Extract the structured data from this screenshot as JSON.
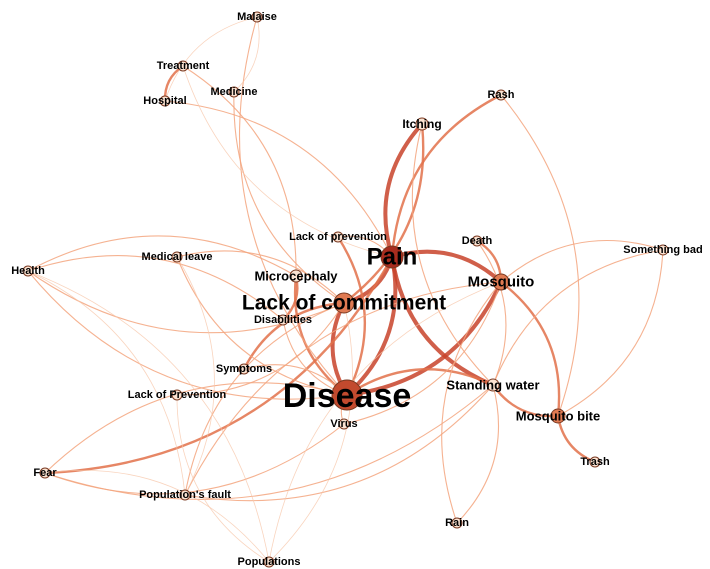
{
  "graph": {
    "edge_colors": {
      "strong": "#c8432a",
      "medium": "#e2714a",
      "weak": "#f3a57e",
      "faint": "#f7c6a8"
    },
    "node_colors": {
      "core": "#c24a2e",
      "major": "#e07a52",
      "minor": "#fbe3d2",
      "pain": "#a82c1e"
    },
    "nodes": [
      {
        "id": "malaise",
        "label": "Malaise",
        "tier": "minor"
      },
      {
        "id": "treatment",
        "label": "Treatment",
        "tier": "minor"
      },
      {
        "id": "hospital",
        "label": "Hospital",
        "tier": "minor"
      },
      {
        "id": "medicine",
        "label": "Medicine",
        "tier": "minor"
      },
      {
        "id": "rash",
        "label": "Rash",
        "tier": "minor"
      },
      {
        "id": "itching",
        "label": "Itching",
        "tier": "minor"
      },
      {
        "id": "lack_prev_top",
        "label": "Lack of prevention",
        "tier": "minor"
      },
      {
        "id": "pain",
        "label": "Pain",
        "tier": "pain"
      },
      {
        "id": "death",
        "label": "Death",
        "tier": "minor"
      },
      {
        "id": "something_bad",
        "label": "Something bad",
        "tier": "minor"
      },
      {
        "id": "health",
        "label": "Health",
        "tier": "minor"
      },
      {
        "id": "medical_leave",
        "label": "Medical leave",
        "tier": "minor"
      },
      {
        "id": "microcephaly",
        "label": "Microcephaly",
        "tier": "minor"
      },
      {
        "id": "mosquito",
        "label": "Mosquito",
        "tier": "major"
      },
      {
        "id": "lack_commitment",
        "label": "Lack of commitment",
        "tier": "major"
      },
      {
        "id": "disabilities",
        "label": "Disabilities",
        "tier": "minor"
      },
      {
        "id": "symptoms",
        "label": "Symptoms",
        "tier": "minor"
      },
      {
        "id": "lack_prev_low",
        "label": "Lack of Prevention",
        "tier": "minor"
      },
      {
        "id": "disease",
        "label": "Disease",
        "tier": "core"
      },
      {
        "id": "standing_water",
        "label": "Standing water",
        "tier": "minor"
      },
      {
        "id": "mosquito_bite",
        "label": "Mosquito bite",
        "tier": "major"
      },
      {
        "id": "virus",
        "label": "Virus",
        "tier": "minor"
      },
      {
        "id": "trash",
        "label": "Trash",
        "tier": "minor"
      },
      {
        "id": "fear",
        "label": "Fear",
        "tier": "minor"
      },
      {
        "id": "populations_fault",
        "label": "Population's fault",
        "tier": "minor"
      },
      {
        "id": "rain",
        "label": "Rain",
        "tier": "minor"
      },
      {
        "id": "populations",
        "label": "Populations",
        "tier": "minor"
      }
    ],
    "edges": [
      {
        "source": "itching",
        "target": "pain",
        "weight": "strong"
      },
      {
        "source": "pain",
        "target": "mosquito",
        "weight": "strong"
      },
      {
        "source": "pain",
        "target": "standing_water",
        "weight": "strong"
      },
      {
        "source": "mosquito",
        "target": "disease",
        "weight": "strong"
      },
      {
        "source": "lack_commitment",
        "target": "disease",
        "weight": "strong"
      },
      {
        "source": "pain",
        "target": "lack_commitment",
        "weight": "strong"
      },
      {
        "source": "disease",
        "target": "pain",
        "weight": "strong"
      },
      {
        "source": "itching",
        "target": "lack_commitment",
        "weight": "medium"
      },
      {
        "source": "microcephaly",
        "target": "disease",
        "weight": "medium"
      },
      {
        "source": "mosquito",
        "target": "mosquito_bite",
        "weight": "medium"
      },
      {
        "source": "mosquito_bite",
        "target": "trash",
        "weight": "medium"
      },
      {
        "source": "symptoms",
        "target": "lack_commitment",
        "weight": "medium"
      },
      {
        "source": "treatment",
        "target": "hospital",
        "weight": "medium"
      },
      {
        "source": "death",
        "target": "mosquito",
        "weight": "medium"
      },
      {
        "source": "standing_water",
        "target": "mosquito_bite",
        "weight": "medium"
      },
      {
        "source": "disease",
        "target": "standing_water",
        "weight": "medium"
      },
      {
        "source": "rash",
        "target": "pain",
        "weight": "medium"
      },
      {
        "source": "lack_prev_top",
        "target": "disease",
        "weight": "medium"
      },
      {
        "source": "fear",
        "target": "pain",
        "weight": "medium"
      },
      {
        "source": "microcephaly",
        "target": "disabilities",
        "weight": "medium"
      },
      {
        "source": "medicine",
        "target": "lack_commitment",
        "weight": "weak"
      },
      {
        "source": "hospital",
        "target": "pain",
        "weight": "weak"
      },
      {
        "source": "malaise",
        "target": "disease",
        "weight": "weak"
      },
      {
        "source": "treatment",
        "target": "microcephaly",
        "weight": "weak"
      },
      {
        "source": "health",
        "target": "lack_commitment",
        "weight": "weak"
      },
      {
        "source": "health",
        "target": "microcephaly",
        "weight": "weak"
      },
      {
        "source": "health",
        "target": "disease",
        "weight": "weak"
      },
      {
        "source": "health",
        "target": "disabilities",
        "weight": "weak"
      },
      {
        "source": "medical_leave",
        "target": "disease",
        "weight": "weak"
      },
      {
        "source": "medical_leave",
        "target": "lack_commitment",
        "weight": "weak"
      },
      {
        "source": "something_bad",
        "target": "mosquito",
        "weight": "weak"
      },
      {
        "source": "something_bad",
        "target": "mosquito_bite",
        "weight": "weak"
      },
      {
        "source": "something_bad",
        "target": "standing_water",
        "weight": "weak"
      },
      {
        "source": "rash",
        "target": "mosquito_bite",
        "weight": "weak"
      },
      {
        "source": "itching",
        "target": "standing_water",
        "weight": "weak"
      },
      {
        "source": "death",
        "target": "standing_water",
        "weight": "weak"
      },
      {
        "source": "fear",
        "target": "virus",
        "weight": "weak"
      },
      {
        "source": "fear",
        "target": "disease",
        "weight": "weak"
      },
      {
        "source": "fear",
        "target": "standing_water",
        "weight": "weak"
      },
      {
        "source": "populations_fault",
        "target": "mosquito",
        "weight": "weak"
      },
      {
        "source": "populations_fault",
        "target": "standing_water",
        "weight": "weak"
      },
      {
        "source": "populations_fault",
        "target": "lack_commitment",
        "weight": "weak"
      },
      {
        "source": "rain",
        "target": "standing_water",
        "weight": "weak"
      },
      {
        "source": "rain",
        "target": "mosquito",
        "weight": "weak"
      },
      {
        "source": "virus",
        "target": "mosquito",
        "weight": "weak"
      },
      {
        "source": "virus",
        "target": "disease",
        "weight": "weak"
      },
      {
        "source": "lack_prev_low",
        "target": "lack_commitment",
        "weight": "weak"
      },
      {
        "source": "symptoms",
        "target": "disease",
        "weight": "weak"
      },
      {
        "source": "disabilities",
        "target": "disease",
        "weight": "weak"
      },
      {
        "source": "lack_prev_top",
        "target": "pain",
        "weight": "weak"
      },
      {
        "source": "populations",
        "target": "lack_commitment",
        "weight": "faint"
      },
      {
        "source": "populations",
        "target": "mosquito",
        "weight": "faint"
      },
      {
        "source": "populations",
        "target": "health",
        "weight": "faint"
      },
      {
        "source": "fear",
        "target": "populations",
        "weight": "faint"
      },
      {
        "source": "malaise",
        "target": "hospital",
        "weight": "faint"
      },
      {
        "source": "malaise",
        "target": "medicine",
        "weight": "faint"
      },
      {
        "source": "treatment",
        "target": "pain",
        "weight": "faint"
      },
      {
        "source": "health",
        "target": "populations_fault",
        "weight": "faint"
      },
      {
        "source": "lack_prev_low",
        "target": "populations",
        "weight": "faint"
      },
      {
        "source": "medical_leave",
        "target": "populations_fault",
        "weight": "faint"
      }
    ]
  }
}
